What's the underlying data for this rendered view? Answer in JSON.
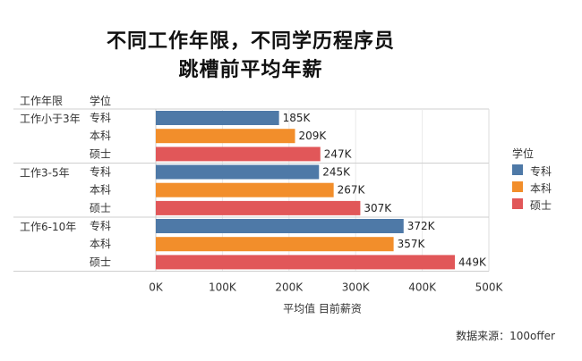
{
  "chart_data": {
    "type": "bar",
    "orientation": "horizontal",
    "title": "不同工作年限，不同学历程序员",
    "subtitle": "跳槽前平均年薪",
    "row_header_1": "工作年限",
    "row_header_2": "学位",
    "xlabel": "平均值 目前薪资",
    "xlim": [
      0,
      500000
    ],
    "x_ticks": [
      "0K",
      "100K",
      "200K",
      "300K",
      "400K",
      "500K"
    ],
    "groups": [
      {
        "label": "工作小于3年",
        "bars": [
          {
            "degree": "专科",
            "value": 185000,
            "label": "185K"
          },
          {
            "degree": "本科",
            "value": 209000,
            "label": "209K"
          },
          {
            "degree": "硕士",
            "value": 247000,
            "label": "247K"
          }
        ]
      },
      {
        "label": "工作3-5年",
        "bars": [
          {
            "degree": "专科",
            "value": 245000,
            "label": "245K"
          },
          {
            "degree": "本科",
            "value": 267000,
            "label": "267K"
          },
          {
            "degree": "硕士",
            "value": 307000,
            "label": "307K"
          }
        ]
      },
      {
        "label": "工作6-10年",
        "bars": [
          {
            "degree": "专科",
            "value": 372000,
            "label": "372K"
          },
          {
            "degree": "本科",
            "value": 357000,
            "label": "357K"
          },
          {
            "degree": "硕士",
            "value": 449000,
            "label": "449K"
          }
        ]
      }
    ],
    "legend": {
      "title": "学位",
      "position": "right",
      "items": [
        {
          "label": "专科",
          "color": "#4E79A7"
        },
        {
          "label": "本科",
          "color": "#F28E2B"
        },
        {
          "label": "硕士",
          "color": "#E15759"
        }
      ]
    },
    "grid": true
  },
  "source": "数据来源：100offer"
}
